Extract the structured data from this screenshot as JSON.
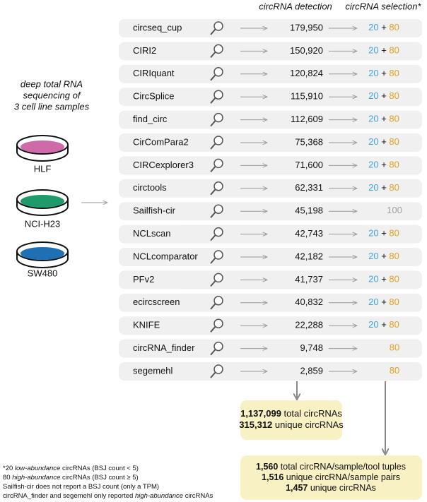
{
  "headers": {
    "detection": "circRNA detection",
    "selection": "circRNA selection*"
  },
  "input": {
    "description": [
      "deep total RNA",
      "sequencing of",
      "3 cell line samples"
    ],
    "samples": [
      {
        "label": "HLF",
        "color": "#cf6aa8"
      },
      {
        "label": "NCI-H23",
        "color": "#1f9a6a"
      },
      {
        "label": "SW480",
        "color": "#1f6fb5"
      }
    ]
  },
  "tools": [
    {
      "name": "circseq_cup",
      "detection": "179,950",
      "selection": [
        {
          "text": "20",
          "tone": "low"
        },
        {
          "text": "+",
          "tone": "plus"
        },
        {
          "text": "80",
          "tone": "high"
        }
      ]
    },
    {
      "name": "CIRI2",
      "detection": "150,920",
      "selection": [
        {
          "text": "20",
          "tone": "low"
        },
        {
          "text": "+",
          "tone": "plus"
        },
        {
          "text": "80",
          "tone": "high"
        }
      ]
    },
    {
      "name": "CIRIquant",
      "detection": "120,824",
      "selection": [
        {
          "text": "20",
          "tone": "low"
        },
        {
          "text": "+",
          "tone": "plus"
        },
        {
          "text": "80",
          "tone": "high"
        }
      ]
    },
    {
      "name": "CircSplice",
      "detection": "115,910",
      "selection": [
        {
          "text": "20",
          "tone": "low"
        },
        {
          "text": "+",
          "tone": "plus"
        },
        {
          "text": "80",
          "tone": "high"
        }
      ]
    },
    {
      "name": "find_circ",
      "detection": "112,609",
      "selection": [
        {
          "text": "20",
          "tone": "low"
        },
        {
          "text": "+",
          "tone": "plus"
        },
        {
          "text": "80",
          "tone": "high"
        }
      ]
    },
    {
      "name": "CirComPara2",
      "detection": "75,368",
      "selection": [
        {
          "text": "20",
          "tone": "low"
        },
        {
          "text": "+",
          "tone": "plus"
        },
        {
          "text": "80",
          "tone": "high"
        }
      ]
    },
    {
      "name": "CIRCexplorer3",
      "detection": "71,600",
      "selection": [
        {
          "text": "20",
          "tone": "low"
        },
        {
          "text": "+",
          "tone": "plus"
        },
        {
          "text": "80",
          "tone": "high"
        }
      ]
    },
    {
      "name": "circtools",
      "detection": "62,331",
      "selection": [
        {
          "text": "20",
          "tone": "low"
        },
        {
          "text": "+",
          "tone": "plus"
        },
        {
          "text": "80",
          "tone": "high"
        }
      ]
    },
    {
      "name": "Sailfish-cir",
      "detection": "45,198",
      "selection": [
        {
          "text": "100",
          "tone": "total"
        }
      ]
    },
    {
      "name": "NCLscan",
      "detection": "42,743",
      "selection": [
        {
          "text": "20",
          "tone": "low"
        },
        {
          "text": "+",
          "tone": "plus"
        },
        {
          "text": "80",
          "tone": "high"
        }
      ]
    },
    {
      "name": "NCLcomparator",
      "detection": "42,182",
      "selection": [
        {
          "text": "20",
          "tone": "low"
        },
        {
          "text": "+",
          "tone": "plus"
        },
        {
          "text": "80",
          "tone": "high"
        }
      ]
    },
    {
      "name": "PFv2",
      "detection": "41,737",
      "selection": [
        {
          "text": "20",
          "tone": "low"
        },
        {
          "text": "+",
          "tone": "plus"
        },
        {
          "text": "80",
          "tone": "high"
        }
      ]
    },
    {
      "name": "ecircscreen",
      "detection": "40,832",
      "selection": [
        {
          "text": "20",
          "tone": "low"
        },
        {
          "text": "+",
          "tone": "plus"
        },
        {
          "text": "80",
          "tone": "high"
        }
      ]
    },
    {
      "name": "KNIFE",
      "detection": "22,288",
      "selection": [
        {
          "text": "20",
          "tone": "low"
        },
        {
          "text": "+",
          "tone": "plus"
        },
        {
          "text": "80",
          "tone": "high"
        }
      ]
    },
    {
      "name": "circRNA_finder",
      "detection": "9,748",
      "selection": [
        {
          "text": "80",
          "tone": "high"
        }
      ]
    },
    {
      "name": "segemehl",
      "detection": "2,859",
      "selection": [
        {
          "text": "80",
          "tone": "high"
        }
      ]
    }
  ],
  "detection_summary": [
    [
      {
        "text": "1,137,099",
        "bold": true
      },
      {
        "text": " total circRNAs"
      }
    ],
    [
      {
        "text": "315,312",
        "bold": true
      },
      {
        "text": " unique circRNAs"
      }
    ]
  ],
  "selection_summary": [
    [
      {
        "text": "1,560",
        "bold": true
      },
      {
        "text": " total circRNA/sample/tool tuples"
      }
    ],
    [
      {
        "text": "1,516",
        "bold": true
      },
      {
        "text": " unique circRNA/sample pairs"
      }
    ],
    [
      {
        "text": "1,457",
        "bold": true
      },
      {
        "text": " unique circRNAs"
      }
    ]
  ],
  "footnotes": [
    [
      {
        "text": "*20 "
      },
      {
        "text": "low-abundance",
        "italic": true
      },
      {
        "text": " circRNAs (BSJ count < 5)"
      }
    ],
    [
      {
        "text": "80 "
      },
      {
        "text": "high-abundance",
        "italic": true
      },
      {
        "text": " circRNAs (BSJ count ≥ 5)"
      }
    ],
    [
      {
        "text": "Sailfish-cir does not report a BSJ count (only a TPM)"
      }
    ],
    [
      {
        "text": "circRNA_finder and segemehl only reported "
      },
      {
        "text": "high-abundance",
        "italic": true
      },
      {
        "text": " circRNAs"
      }
    ]
  ]
}
